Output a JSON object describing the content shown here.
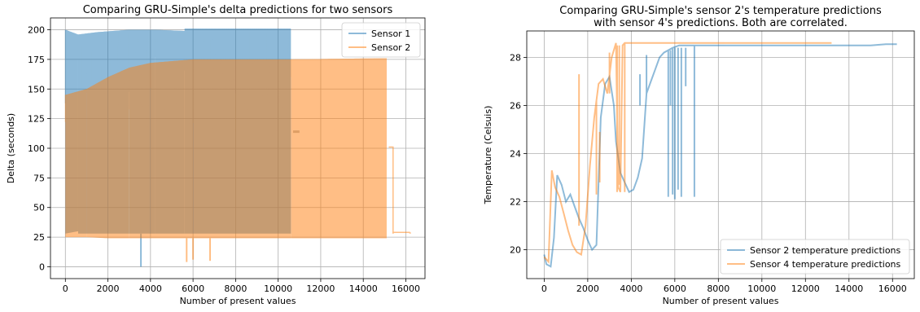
{
  "chart_data": [
    {
      "type": "line",
      "title": [
        "Comparing GRU-Simple's delta predictions for two sensors"
      ],
      "xlabel": "Number of present values",
      "ylabel": "Delta (seconds)",
      "xlim": [
        -700,
        16900
      ],
      "ylim": [
        -10,
        210
      ],
      "xticks": [
        0,
        2000,
        4000,
        6000,
        8000,
        10000,
        12000,
        14000,
        16000
      ],
      "yticks": [
        0,
        25,
        50,
        75,
        100,
        125,
        150,
        175,
        200
      ],
      "grid": true,
      "legend_position": "top-right",
      "series": [
        {
          "name": "Sensor 1",
          "color": "#1f77b4",
          "opacity": 0.5,
          "band": {
            "segments": [
              {
                "x": [
                  0,
                  600
                ],
                "low": [
                  28,
                  30
                ],
                "high": [
                  200,
                  196
                ]
              },
              {
                "x": [
                  600,
                  1500
                ],
                "low": [
                  28,
                  28
                ],
                "high": [
                  196,
                  198
                ]
              },
              {
                "x": [
                  1500,
                  3000
                ],
                "low": [
                  28,
                  28
                ],
                "high": [
                  198,
                  200
                ]
              },
              {
                "x": [
                  3000,
                  4200
                ],
                "low": [
                  28,
                  28
                ],
                "high": [
                  200,
                  200
                ]
              },
              {
                "x": [
                  4200,
                  5600
                ],
                "low": [
                  28,
                  28
                ],
                "high": [
                  200,
                  199
                ]
              },
              {
                "x": [
                  5600,
                  8000
                ],
                "low": [
                  28,
                  28
                ],
                "high": [
                  201,
                  201
                ]
              },
              {
                "x": [
                  8000,
                  10600
                ],
                "low": [
                  28,
                  28
                ],
                "high": [
                  201,
                  201
                ]
              }
            ]
          },
          "spikes": [
            {
              "x": 3550,
              "y": 0
            },
            {
              "x": 10700,
              "y": 114
            },
            {
              "x": 11000,
              "y": 114
            }
          ]
        },
        {
          "name": "Sensor 2",
          "color": "#ff7f0e",
          "opacity": 0.5,
          "band": {
            "segments": [
              {
                "x": [
                  0,
                  1000
                ],
                "low": [
                  25,
                  25
                ],
                "high": [
                  145,
                  150
                ]
              },
              {
                "x": [
                  1000,
                  2000
                ],
                "low": [
                  25,
                  24
                ],
                "high": [
                  150,
                  160
                ]
              },
              {
                "x": [
                  2000,
                  3000
                ],
                "low": [
                  24,
                  24
                ],
                "high": [
                  160,
                  168
                ]
              },
              {
                "x": [
                  3000,
                  4000
                ],
                "low": [
                  24,
                  24
                ],
                "high": [
                  168,
                  172
                ]
              },
              {
                "x": [
                  4000,
                  6000
                ],
                "low": [
                  24,
                  24
                ],
                "high": [
                  172,
                  175
                ]
              },
              {
                "x": [
                  6000,
                  10600
                ],
                "low": [
                  24,
                  24
                ],
                "high": [
                  175,
                  175
                ]
              },
              {
                "x": [
                  10600,
                  15100
                ],
                "low": [
                  24,
                  24
                ],
                "high": [
                  175,
                  176
                ]
              }
            ]
          },
          "spikes": [
            {
              "x": 5700,
              "y": 4
            },
            {
              "x": 6000,
              "y": 6
            },
            {
              "x": 6800,
              "y": 5
            },
            {
              "x": 15200,
              "y": 101
            },
            {
              "x": 15400,
              "y": 101
            },
            {
              "x": 15400,
              "y": 29
            },
            {
              "x": 16200,
              "y": 29
            }
          ]
        }
      ]
    },
    {
      "type": "line",
      "title": [
        "Comparing GRU-Simple's sensor 2's temperature predictions",
        "with sensor 4's predictions. Both are correlated."
      ],
      "xlabel": "Number of present values",
      "ylabel": "Temperature (Celsuis)",
      "xlim": [
        -800,
        17000
      ],
      "ylim": [
        18.8,
        29.1
      ],
      "xticks": [
        0,
        2000,
        4000,
        6000,
        8000,
        10000,
        12000,
        14000,
        16000
      ],
      "yticks": [
        20,
        22,
        24,
        26,
        28
      ],
      "grid": true,
      "legend_position": "bottom-right",
      "series": [
        {
          "name": "Sensor 2 temperature predictions",
          "color": "#1f77b4",
          "opacity": 0.5,
          "x": [
            0,
            100,
            300,
            450,
            600,
            800,
            1000,
            1200,
            1400,
            1600,
            1800,
            2000,
            2200,
            2400,
            2600,
            2800,
            3000,
            3200,
            3300,
            3500,
            3700,
            3900,
            4100,
            4300,
            4500,
            4700,
            4900,
            5100,
            5300,
            5500,
            5700,
            5900,
            6200,
            6500,
            7000,
            8000,
            10000,
            12000,
            14000,
            15000,
            15700,
            16200
          ],
          "y": [
            19.8,
            19.4,
            19.3,
            20.5,
            23.1,
            22.7,
            22.0,
            22.3,
            21.8,
            21.3,
            20.9,
            20.4,
            20.0,
            20.2,
            25.5,
            26.9,
            27.2,
            26.0,
            24.5,
            23.2,
            22.8,
            22.4,
            22.5,
            23.0,
            23.8,
            26.5,
            27.0,
            27.5,
            28.0,
            28.2,
            28.3,
            28.4,
            28.5,
            28.5,
            28.5,
            28.5,
            28.5,
            28.5,
            28.5,
            28.5,
            28.55,
            28.55
          ],
          "spikes": [
            {
              "x": 4400,
              "y_from": 26.0,
              "y_to": 27.3
            },
            {
              "x": 4700,
              "y_from": 26.5,
              "y_to": 28.1
            },
            {
              "x": 5700,
              "y_from": 28.3,
              "y_to": 22.2
            },
            {
              "x": 5800,
              "y_from": 28.3,
              "y_to": 26.0
            },
            {
              "x": 5900,
              "y_from": 28.4,
              "y_to": 22.3
            },
            {
              "x": 6000,
              "y_from": 28.4,
              "y_to": 22.1
            },
            {
              "x": 6150,
              "y_from": 28.4,
              "y_to": 22.5
            },
            {
              "x": 6300,
              "y_from": 28.4,
              "y_to": 22.2
            },
            {
              "x": 6500,
              "y_from": 28.4,
              "y_to": 26.8
            },
            {
              "x": 6900,
              "y_from": 28.5,
              "y_to": 22.2
            }
          ]
        },
        {
          "name": "Sensor 4 temperature predictions",
          "color": "#ff7f0e",
          "opacity": 0.5,
          "x": [
            0,
            200,
            350,
            500,
            700,
            900,
            1100,
            1300,
            1500,
            1700,
            1900,
            2100,
            2300,
            2500,
            2700,
            2900,
            3100,
            3300,
            3400,
            3500,
            3600,
            3700,
            4000,
            6000,
            8000,
            10000,
            12000,
            13200
          ],
          "y": [
            19.7,
            19.5,
            23.3,
            22.6,
            22.2,
            21.5,
            20.8,
            20.2,
            19.9,
            19.8,
            21.0,
            23.5,
            25.5,
            26.9,
            27.1,
            26.5,
            28.0,
            28.6,
            22.6,
            22.4,
            28.5,
            28.6,
            28.6,
            28.6,
            28.6,
            28.6,
            28.6,
            28.6
          ],
          "spikes": [
            {
              "x": 1600,
              "y_from": 21.0,
              "y_to": 27.3
            },
            {
              "x": 2400,
              "y_from": 22.3,
              "y_to": 26.2
            },
            {
              "x": 2550,
              "y_from": 22.8,
              "y_to": 24.9
            },
            {
              "x": 3000,
              "y_from": 26.5,
              "y_to": 28.2
            },
            {
              "x": 3350,
              "y_from": 28.5,
              "y_to": 22.4
            },
            {
              "x": 3450,
              "y_from": 28.5,
              "y_to": 22.7
            },
            {
              "x": 3700,
              "y_from": 28.6,
              "y_to": 22.4
            }
          ]
        }
      ]
    }
  ]
}
